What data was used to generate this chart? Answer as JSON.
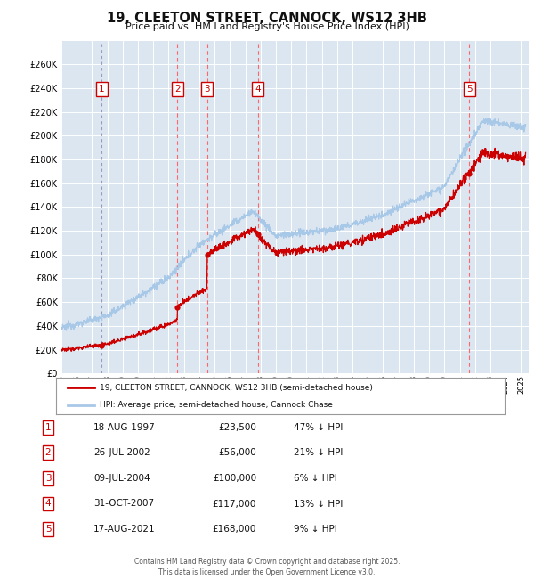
{
  "title": "19, CLEETON STREET, CANNOCK, WS12 3HB",
  "subtitle": "Price paid vs. HM Land Registry's House Price Index (HPI)",
  "ylim": [
    0,
    280000
  ],
  "yticks": [
    0,
    20000,
    40000,
    60000,
    80000,
    100000,
    120000,
    140000,
    160000,
    180000,
    200000,
    220000,
    240000,
    260000
  ],
  "xlim_start": 1995.0,
  "xlim_end": 2025.5,
  "background_color": "#ffffff",
  "plot_bg_color": "#dce6f1",
  "grid_color": "#ffffff",
  "hpi_line_color": "#a8c8e8",
  "price_line_color": "#cc0000",
  "sale_marker_color": "#cc0000",
  "vline_color_dashed": "#ff6666",
  "vline_color_light": "#bbbbcc",
  "label_box_color": "#cc0000",
  "transactions": [
    {
      "num": 1,
      "year": 1997.62,
      "price": 23500,
      "label": "1",
      "date": "18-AUG-1997",
      "pct": "47% ↓ HPI",
      "vline_style": "light"
    },
    {
      "num": 2,
      "year": 2002.56,
      "price": 56000,
      "label": "2",
      "date": "26-JUL-2002",
      "pct": "21% ↓ HPI",
      "vline_style": "red"
    },
    {
      "num": 3,
      "year": 2004.52,
      "price": 100000,
      "label": "3",
      "date": "09-JUL-2004",
      "pct": "6% ↓ HPI",
      "vline_style": "red"
    },
    {
      "num": 4,
      "year": 2007.83,
      "price": 117000,
      "label": "4",
      "date": "31-OCT-2007",
      "pct": "13% ↓ HPI",
      "vline_style": "red"
    },
    {
      "num": 5,
      "year": 2021.62,
      "price": 168000,
      "label": "5",
      "date": "17-AUG-2021",
      "pct": "9% ↓ HPI",
      "vline_style": "red"
    }
  ],
  "legend_line1": "19, CLEETON STREET, CANNOCK, WS12 3HB (semi-detached house)",
  "legend_line2": "HPI: Average price, semi-detached house, Cannock Chase",
  "table_rows": [
    [
      "1",
      "18-AUG-1997",
      "£23,500",
      "47% ↓ HPI"
    ],
    [
      "2",
      "26-JUL-2002",
      "£56,000",
      "21% ↓ HPI"
    ],
    [
      "3",
      "09-JUL-2004",
      "£100,000",
      "6% ↓ HPI"
    ],
    [
      "4",
      "31-OCT-2007",
      "£117,000",
      "13% ↓ HPI"
    ],
    [
      "5",
      "17-AUG-2021",
      "£168,000",
      "9% ↓ HPI"
    ]
  ],
  "footer": "Contains HM Land Registry data © Crown copyright and database right 2025.\nThis data is licensed under the Open Government Licence v3.0."
}
